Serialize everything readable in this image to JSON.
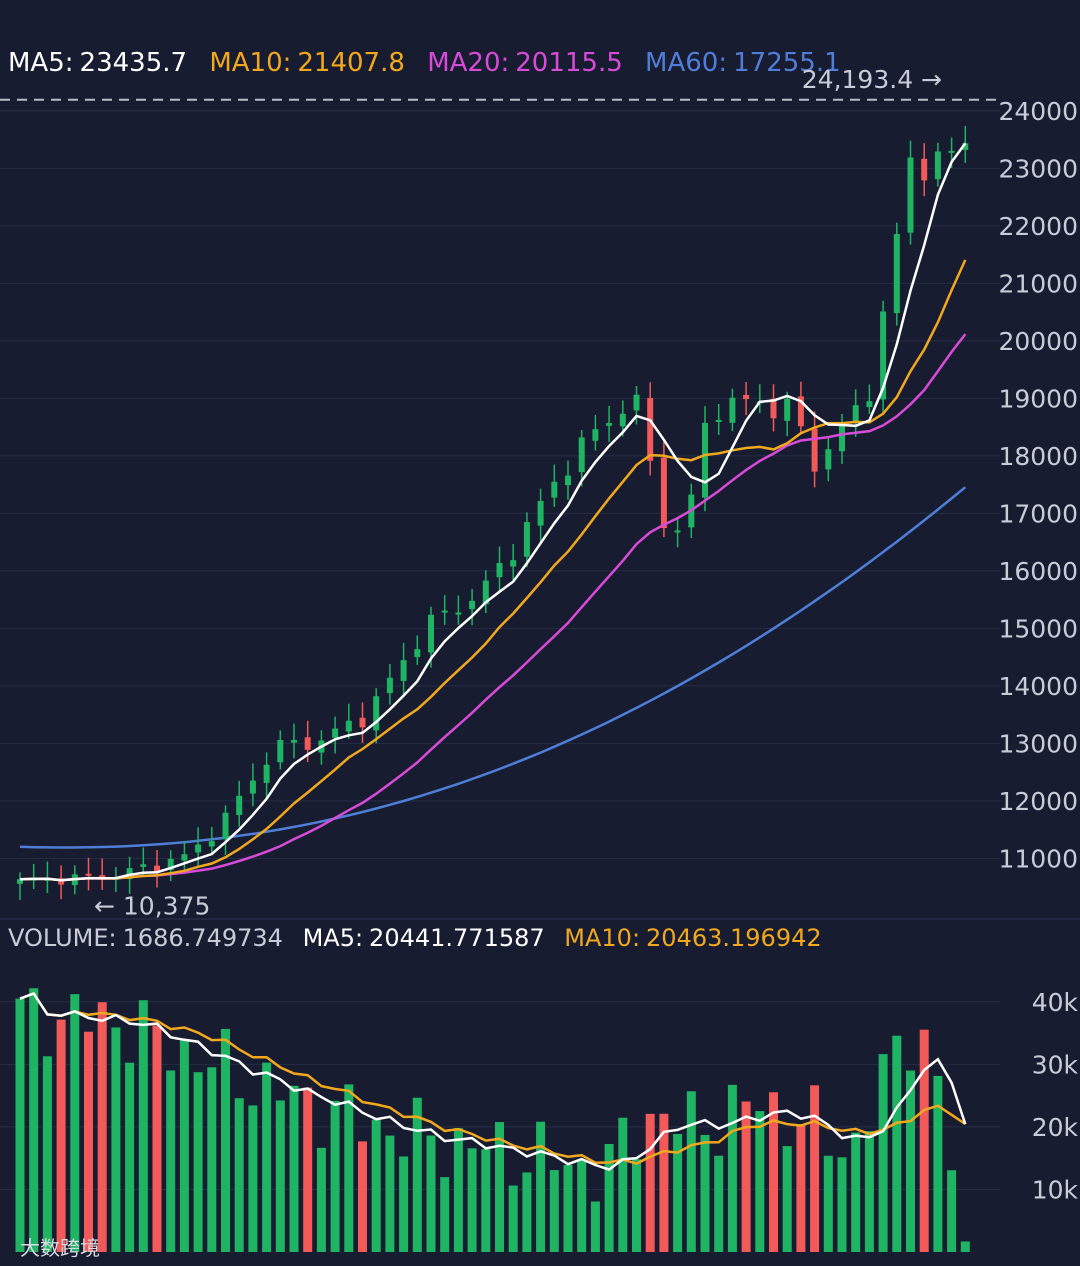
{
  "main_legend": {
    "ma5": {
      "label": "MA5:",
      "value": "23435.7",
      "color": "#ffffff"
    },
    "ma10": {
      "label": "MA10:",
      "value": "21407.8",
      "color": "#f2a81d"
    },
    "ma20": {
      "label": "MA20:",
      "value": "20115.5",
      "color": "#d84ad8"
    },
    "ma60": {
      "label": "MA60:",
      "value": "17255.1",
      "color": "#4f7ed8"
    }
  },
  "volume_legend": {
    "volume": {
      "label": "VOLUME:",
      "value": "1686.749734",
      "color": "#c9ccd6"
    },
    "ma5": {
      "label": "MA5:",
      "value": "20441.771587",
      "color": "#ffffff"
    },
    "ma10": {
      "label": "MA10:",
      "value": "20463.196942",
      "color": "#f2a81d"
    }
  },
  "watermark_text": "大数跨境",
  "colors": {
    "up": "#1fb464",
    "down": "#f25a5a",
    "grid": "#262c45",
    "background": "#171c30",
    "dashed": "#b9bcc6"
  },
  "chart_data": [
    {
      "type": "candlestick",
      "title": "",
      "y_ticks": [
        11000,
        12000,
        13000,
        14000,
        15000,
        16000,
        17000,
        18000,
        19000,
        20000,
        21000,
        22000,
        23000,
        24000
      ],
      "ylim": [
        10275,
        24450
      ],
      "high_label": "24,193.4 →",
      "high_value": 24193.4,
      "low_label": "← 10,375",
      "low_value": 10375,
      "series_count": 70,
      "ma_close_values": {
        "ma5": 23435.7,
        "ma10": 21407.8,
        "ma20": 20115.5,
        "ma60": 17255.1
      }
    },
    {
      "type": "bar",
      "title": "",
      "y_ticks": [
        10000,
        20000,
        30000,
        40000
      ],
      "y_tick_labels": [
        "10k",
        "20k",
        "30k",
        "40k"
      ],
      "ylim": [
        0,
        47000
      ],
      "last_value": 1686.749734,
      "ma_values": {
        "ma5": 20441.771587,
        "ma10": 20463.196942
      }
    }
  ]
}
